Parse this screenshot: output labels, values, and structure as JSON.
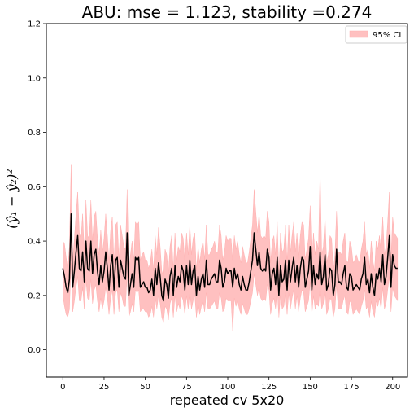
{
  "chart_data": {
    "type": "line",
    "title": "ABU: mse = 1.123, stability =0.274",
    "xlabel": "repeated cv 5x20",
    "ylabel": "(ŷ₁ − ŷ₂)²",
    "xlim": [
      -10,
      209
    ],
    "ylim": [
      -0.1,
      1.2
    ],
    "xticks": [
      0,
      25,
      50,
      75,
      100,
      125,
      150,
      175,
      200
    ],
    "yticks": [
      0.0,
      0.2,
      0.4,
      0.6,
      0.8,
      1.0,
      1.2
    ],
    "xtick_labels": [
      "0",
      "25",
      "50",
      "75",
      "100",
      "125",
      "150",
      "175",
      "200"
    ],
    "ytick_labels": [
      "0.0",
      "0.2",
      "0.4",
      "0.6",
      "0.8",
      "1.0",
      "1.2"
    ],
    "grid": false,
    "legend": {
      "placement": "top-right",
      "entries": [
        "95% CI"
      ]
    },
    "colors": {
      "line": "#000000",
      "band": "#ffc0c0",
      "band_edge": "#ffb0b0"
    },
    "series": [
      {
        "x_start": 0,
        "x_step": 1,
        "values": [
          0.3,
          0.27,
          0.23,
          0.21,
          0.26,
          0.5,
          0.23,
          0.29,
          0.36,
          0.42,
          0.3,
          0.29,
          0.36,
          0.25,
          0.4,
          0.3,
          0.29,
          0.4,
          0.28,
          0.35,
          0.37,
          0.29,
          0.24,
          0.31,
          0.25,
          0.29,
          0.36,
          0.3,
          0.22,
          0.31,
          0.35,
          0.22,
          0.33,
          0.34,
          0.23,
          0.33,
          0.3,
          0.27,
          0.26,
          0.43,
          0.2,
          0.24,
          0.28,
          0.23,
          0.34,
          0.33,
          0.34,
          0.23,
          0.24,
          0.25,
          0.23,
          0.23,
          0.21,
          0.22,
          0.26,
          0.2,
          0.3,
          0.24,
          0.32,
          0.27,
          0.2,
          0.18,
          0.26,
          0.24,
          0.19,
          0.27,
          0.3,
          0.2,
          0.31,
          0.23,
          0.27,
          0.25,
          0.31,
          0.29,
          0.22,
          0.31,
          0.24,
          0.33,
          0.24,
          0.29,
          0.31,
          0.2,
          0.27,
          0.22,
          0.26,
          0.28,
          0.23,
          0.33,
          0.24,
          0.24,
          0.26,
          0.27,
          0.28,
          0.25,
          0.25,
          0.33,
          0.3,
          0.23,
          0.25,
          0.3,
          0.28,
          0.29,
          0.29,
          0.23,
          0.3,
          0.26,
          0.28,
          0.24,
          0.22,
          0.27,
          0.24,
          0.22,
          0.22,
          0.25,
          0.29,
          0.33,
          0.43,
          0.37,
          0.31,
          0.36,
          0.3,
          0.29,
          0.3,
          0.29,
          0.37,
          0.34,
          0.22,
          0.28,
          0.3,
          0.24,
          0.34,
          0.2,
          0.31,
          0.25,
          0.26,
          0.33,
          0.22,
          0.33,
          0.25,
          0.3,
          0.34,
          0.25,
          0.31,
          0.23,
          0.3,
          0.34,
          0.33,
          0.23,
          0.26,
          0.29,
          0.38,
          0.22,
          0.31,
          0.24,
          0.28,
          0.26,
          0.36,
          0.24,
          0.27,
          0.35,
          0.22,
          0.24,
          0.3,
          0.29,
          0.2,
          0.24,
          0.37,
          0.25,
          0.25,
          0.24,
          0.28,
          0.31,
          0.23,
          0.22,
          0.28,
          0.27,
          0.22,
          0.23,
          0.24,
          0.23,
          0.22,
          0.26,
          0.28,
          0.34,
          0.24,
          0.26,
          0.21,
          0.28,
          0.23,
          0.2,
          0.28,
          0.26,
          0.3,
          0.25,
          0.35,
          0.24,
          0.27,
          0.34,
          0.42,
          0.23,
          0.35,
          0.31,
          0.3,
          0.3
        ],
        "lower": [
          0.2,
          0.16,
          0.13,
          0.12,
          0.15,
          0.32,
          0.14,
          0.18,
          0.23,
          0.27,
          0.18,
          0.18,
          0.23,
          0.15,
          0.26,
          0.19,
          0.18,
          0.26,
          0.17,
          0.22,
          0.24,
          0.18,
          0.14,
          0.19,
          0.15,
          0.18,
          0.23,
          0.19,
          0.13,
          0.19,
          0.22,
          0.13,
          0.21,
          0.22,
          0.14,
          0.21,
          0.19,
          0.16,
          0.16,
          0.28,
          0.12,
          0.14,
          0.17,
          0.14,
          0.22,
          0.21,
          0.22,
          0.14,
          0.15,
          0.15,
          0.14,
          0.14,
          0.12,
          0.13,
          0.16,
          0.12,
          0.19,
          0.15,
          0.2,
          0.17,
          0.12,
          0.1,
          0.16,
          0.15,
          0.11,
          0.17,
          0.19,
          0.12,
          0.2,
          0.14,
          0.17,
          0.15,
          0.2,
          0.18,
          0.13,
          0.2,
          0.15,
          0.21,
          0.15,
          0.18,
          0.2,
          0.12,
          0.17,
          0.13,
          0.16,
          0.18,
          0.14,
          0.21,
          0.15,
          0.15,
          0.16,
          0.17,
          0.18,
          0.15,
          0.15,
          0.21,
          0.19,
          0.14,
          0.15,
          0.19,
          0.18,
          0.18,
          0.18,
          0.07,
          0.19,
          0.16,
          0.18,
          0.15,
          0.13,
          0.17,
          0.15,
          0.13,
          0.13,
          0.15,
          0.18,
          0.21,
          0.28,
          0.24,
          0.2,
          0.23,
          0.19,
          0.18,
          0.19,
          0.18,
          0.24,
          0.22,
          0.13,
          0.17,
          0.19,
          0.15,
          0.22,
          0.12,
          0.2,
          0.15,
          0.16,
          0.21,
          0.13,
          0.21,
          0.15,
          0.19,
          0.22,
          0.15,
          0.2,
          0.14,
          0.19,
          0.22,
          0.21,
          0.14,
          0.16,
          0.18,
          0.25,
          0.13,
          0.2,
          0.15,
          0.17,
          0.16,
          0.23,
          0.15,
          0.17,
          0.23,
          0.13,
          0.15,
          0.19,
          0.18,
          0.12,
          0.15,
          0.24,
          0.15,
          0.15,
          0.15,
          0.18,
          0.2,
          0.14,
          0.13,
          0.18,
          0.17,
          0.13,
          0.14,
          0.15,
          0.14,
          0.13,
          0.16,
          0.18,
          0.22,
          0.15,
          0.16,
          0.12,
          0.18,
          0.14,
          0.12,
          0.18,
          0.16,
          0.19,
          0.15,
          0.23,
          0.15,
          0.17,
          0.22,
          0.27,
          0.14,
          0.23,
          0.2,
          0.19,
          0.18
        ],
        "upper": [
          0.4,
          0.39,
          0.34,
          0.3,
          0.38,
          0.68,
          0.33,
          0.41,
          0.5,
          0.58,
          0.43,
          0.41,
          0.5,
          0.36,
          0.55,
          0.42,
          0.41,
          0.55,
          0.4,
          0.49,
          0.51,
          0.41,
          0.35,
          0.44,
          0.36,
          0.41,
          0.5,
          0.42,
          0.32,
          0.44,
          0.49,
          0.32,
          0.46,
          0.47,
          0.33,
          0.46,
          0.42,
          0.38,
          0.37,
          0.59,
          0.29,
          0.35,
          0.4,
          0.33,
          0.47,
          0.46,
          0.47,
          0.33,
          0.35,
          0.36,
          0.33,
          0.33,
          0.3,
          0.32,
          0.37,
          0.29,
          0.42,
          0.35,
          0.45,
          0.38,
          0.29,
          0.27,
          0.37,
          0.35,
          0.28,
          0.38,
          0.42,
          0.29,
          0.43,
          0.33,
          0.38,
          0.36,
          0.43,
          0.41,
          0.32,
          0.43,
          0.35,
          0.46,
          0.35,
          0.41,
          0.43,
          0.29,
          0.38,
          0.32,
          0.37,
          0.4,
          0.33,
          0.46,
          0.35,
          0.35,
          0.37,
          0.38,
          0.4,
          0.36,
          0.36,
          0.46,
          0.42,
          0.33,
          0.36,
          0.42,
          0.4,
          0.41,
          0.41,
          0.33,
          0.42,
          0.37,
          0.4,
          0.35,
          0.32,
          0.38,
          0.35,
          0.32,
          0.32,
          0.36,
          0.41,
          0.46,
          0.59,
          0.51,
          0.43,
          0.5,
          0.42,
          0.41,
          0.42,
          0.41,
          0.51,
          0.47,
          0.32,
          0.4,
          0.42,
          0.35,
          0.47,
          0.29,
          0.43,
          0.36,
          0.37,
          0.46,
          0.32,
          0.46,
          0.36,
          0.42,
          0.47,
          0.36,
          0.43,
          0.33,
          0.42,
          0.47,
          0.46,
          0.33,
          0.37,
          0.41,
          0.53,
          0.32,
          0.43,
          0.35,
          0.4,
          0.37,
          0.66,
          0.35,
          0.38,
          0.49,
          0.32,
          0.35,
          0.42,
          0.41,
          0.29,
          0.35,
          0.51,
          0.36,
          0.36,
          0.35,
          0.4,
          0.43,
          0.33,
          0.32,
          0.4,
          0.38,
          0.32,
          0.33,
          0.35,
          0.33,
          0.32,
          0.37,
          0.4,
          0.47,
          0.35,
          0.37,
          0.3,
          0.4,
          0.33,
          0.29,
          0.4,
          0.37,
          0.42,
          0.36,
          0.49,
          0.35,
          0.38,
          0.47,
          0.58,
          0.33,
          0.49,
          0.43,
          0.42,
          0.41
        ]
      }
    ]
  }
}
